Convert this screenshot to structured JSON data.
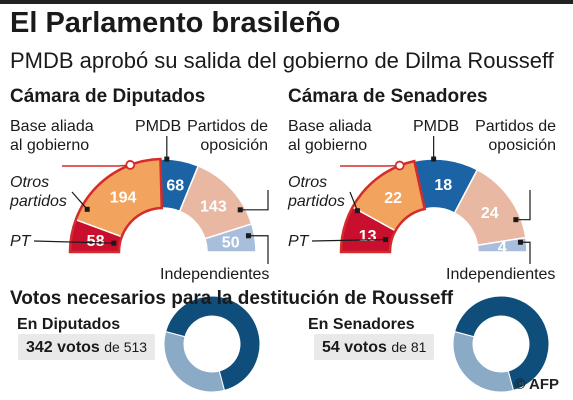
{
  "title": "El Parlamento brasileño",
  "subtitle": "PMDB aprobó su salida del gobierno de Dilma Rousseff",
  "labels": {
    "base_line1": "Base aliada",
    "base_line2": "al gobierno",
    "pmdb": "PMDB",
    "opos_line1": "Partidos de",
    "opos_line2": "oposición",
    "otros_line1": "Otros",
    "otros_line2": "partidos",
    "pt": "PT",
    "indep": "Independientes"
  },
  "colors": {
    "pt": "#c8102e",
    "otros": "#f2a35e",
    "pmdb": "#1b63a5",
    "oposicion": "#e8b8a3",
    "independientes": "#a9bedc",
    "base_outline": "#d52b2b",
    "vote_dark": "#0f4d7a",
    "vote_light": "#8aaac6"
  },
  "chart_data": [
    {
      "type": "pie",
      "title": "Cámara de Diputados",
      "categories": [
        "PT",
        "Otros partidos",
        "PMDB",
        "Partidos de oposición",
        "Independientes"
      ],
      "values": [
        58,
        194,
        68,
        143,
        50
      ]
    },
    {
      "type": "pie",
      "title": "Cámara de Senadores",
      "categories": [
        "PT",
        "Otros partidos",
        "PMDB",
        "Partidos de oposición",
        "Independientes"
      ],
      "values": [
        13,
        22,
        18,
        24,
        4
      ]
    }
  ],
  "votes": {
    "title": "Votos necesarios para la destitución de Rousseff",
    "diputados": {
      "heading": "En Diputados",
      "needed_text": "342 votos",
      "of_text": "de 513",
      "needed": 342,
      "total": 513
    },
    "senadores": {
      "heading": "En Senadores",
      "needed_text": "54 votos",
      "of_text": "de 81",
      "needed": 54,
      "total": 81
    }
  },
  "credit": "© AFP"
}
